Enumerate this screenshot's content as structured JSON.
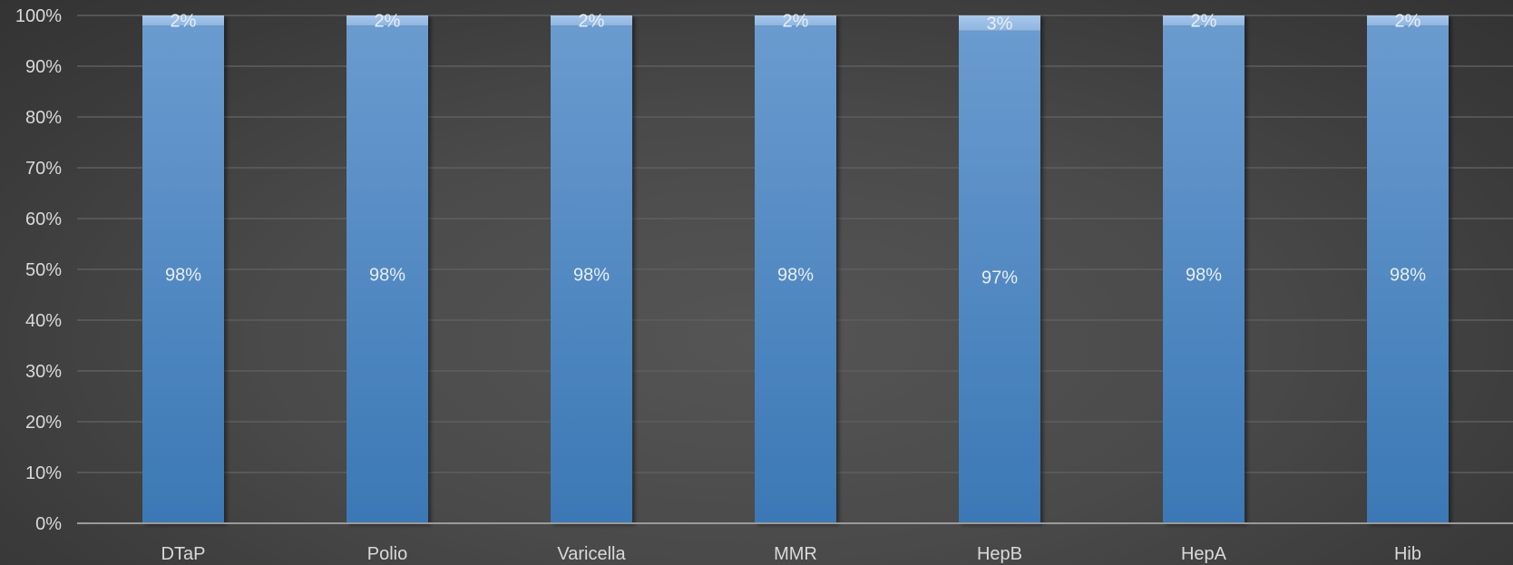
{
  "chart_data": {
    "type": "bar",
    "stacked": true,
    "percent": true,
    "categories": [
      "DTaP",
      "Polio",
      "Varicella",
      "MMR",
      "HepB",
      "HepA",
      "Hib"
    ],
    "series": [
      {
        "values": [
          98,
          98,
          98,
          98,
          97,
          98,
          98
        ],
        "labels": [
          "98%",
          "98%",
          "98%",
          "98%",
          "97%",
          "98%",
          "98%"
        ],
        "color": "#4a86c8"
      },
      {
        "values": [
          2,
          2,
          2,
          2,
          3,
          2,
          2
        ],
        "labels": [
          "2%",
          "2%",
          "2%",
          "2%",
          "3%",
          "2%",
          "2%"
        ],
        "color": "#9dbfe6"
      }
    ],
    "y_ticks": [
      "0%",
      "10%",
      "20%",
      "30%",
      "40%",
      "50%",
      "60%",
      "70%",
      "80%",
      "90%",
      "100%"
    ],
    "ylim": [
      0,
      100
    ],
    "grid": true,
    "legend": "none"
  }
}
